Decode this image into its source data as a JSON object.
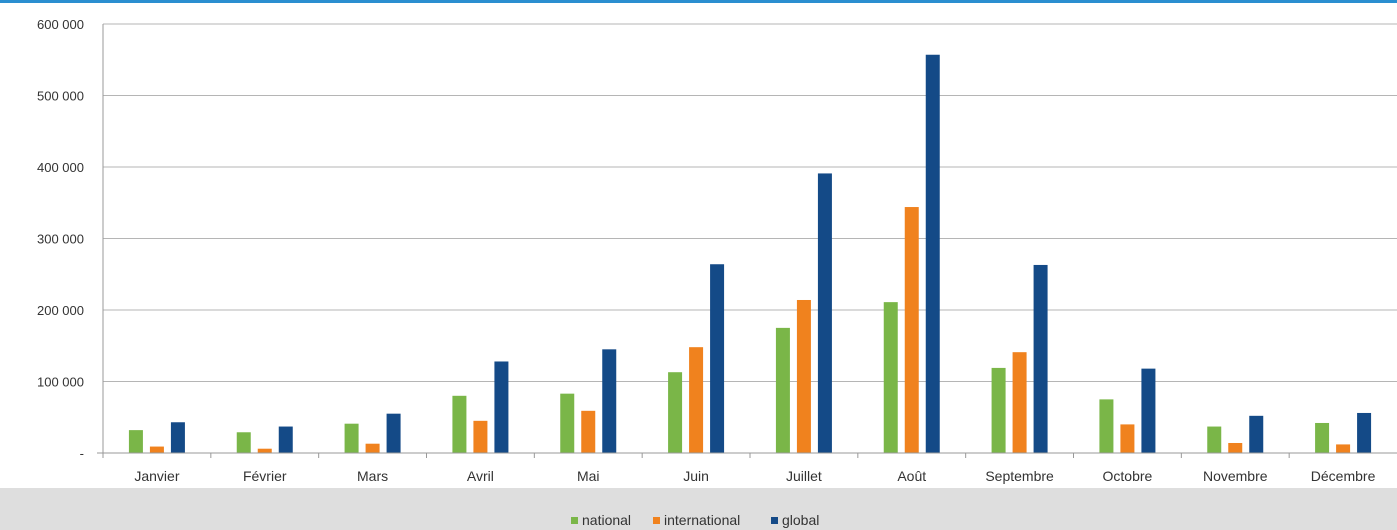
{
  "colors": {
    "national": "#7ab648",
    "international": "#f0821e",
    "global": "#144a87",
    "gridline": "#b5b5b5",
    "axis": "#999999",
    "legend_band": "#dedede",
    "top_rule": "#2a8ed0"
  },
  "chart_data": {
    "type": "bar",
    "title": "",
    "xlabel": "",
    "ylabel": "",
    "ylim": [
      0,
      600000
    ],
    "grid": true,
    "legend_position": "bottom",
    "y_ticks": [
      {
        "value": 0,
        "label": "-"
      },
      {
        "value": 100000,
        "label": "100 000"
      },
      {
        "value": 200000,
        "label": "200 000"
      },
      {
        "value": 300000,
        "label": "300 000"
      },
      {
        "value": 400000,
        "label": "400 000"
      },
      {
        "value": 500000,
        "label": "500 000"
      },
      {
        "value": 600000,
        "label": "600 000"
      }
    ],
    "categories": [
      "Janvier",
      "Février",
      "Mars",
      "Avril",
      "Mai",
      "Juin",
      "Juillet",
      "Août",
      "Septembre",
      "Octobre",
      "Novembre",
      "Décembre"
    ],
    "series": [
      {
        "name": "national",
        "color": "#7ab648",
        "values": [
          32000,
          29000,
          41000,
          80000,
          83000,
          113000,
          175000,
          211000,
          119000,
          75000,
          37000,
          42000
        ]
      },
      {
        "name": "international",
        "color": "#f0821e",
        "values": [
          9000,
          6000,
          13000,
          45000,
          59000,
          148000,
          214000,
          344000,
          141000,
          40000,
          14000,
          12000
        ]
      },
      {
        "name": "global",
        "color": "#144a87",
        "values": [
          43000,
          37000,
          55000,
          128000,
          145000,
          264000,
          391000,
          557000,
          263000,
          118000,
          52000,
          56000
        ]
      }
    ]
  }
}
